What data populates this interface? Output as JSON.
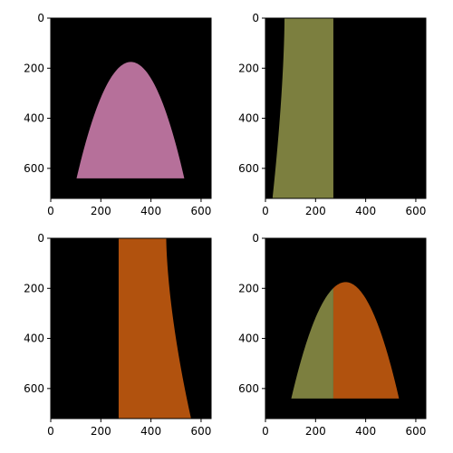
{
  "chart_data": [
    {
      "type": "heatmap",
      "xlim": [
        0,
        640
      ],
      "ylim": [
        720,
        0
      ],
      "x_ticks": [
        0,
        200,
        400,
        600
      ],
      "y_ticks": [
        0,
        200,
        400,
        600
      ],
      "background_color": "#000000",
      "regions": [
        {
          "color": "#b6709a",
          "shape": "parabola",
          "apex": [
            320,
            175
          ],
          "base_y": 640,
          "base_x": [
            103,
            533
          ],
          "clip_x": [
            0,
            640
          ]
        }
      ]
    },
    {
      "type": "heatmap",
      "xlim": [
        0,
        640
      ],
      "ylim": [
        720,
        0
      ],
      "x_ticks": [
        0,
        200,
        400,
        600
      ],
      "y_ticks": [
        0,
        200,
        400,
        600
      ],
      "background_color": "#000000",
      "regions": [
        {
          "color": "#7c7f3f",
          "shape": "left-curved-band",
          "top_x": [
            76,
            271
          ],
          "bottom_x": [
            28,
            271
          ],
          "y_range": [
            0,
            720
          ]
        }
      ]
    },
    {
      "type": "heatmap",
      "xlim": [
        0,
        640
      ],
      "ylim": [
        720,
        0
      ],
      "x_ticks": [
        0,
        200,
        400,
        600
      ],
      "y_ticks": [
        0,
        200,
        400,
        600
      ],
      "background_color": "#000000",
      "regions": [
        {
          "color": "#b1520e",
          "shape": "right-curved-band",
          "top_x": [
            271,
            461
          ],
          "bottom_x": [
            271,
            560
          ],
          "y_range": [
            0,
            720
          ]
        }
      ]
    },
    {
      "type": "heatmap",
      "xlim": [
        0,
        640
      ],
      "ylim": [
        720,
        0
      ],
      "x_ticks": [
        0,
        200,
        400,
        600
      ],
      "y_ticks": [
        0,
        200,
        400,
        600
      ],
      "background_color": "#000000",
      "regions": [
        {
          "color": "#7c7f3f",
          "shape": "parabola",
          "apex": [
            320,
            175
          ],
          "base_y": 640,
          "base_x": [
            103,
            533
          ],
          "clip_x": [
            0,
            271
          ]
        },
        {
          "color": "#b1520e",
          "shape": "parabola",
          "apex": [
            320,
            175
          ],
          "base_y": 640,
          "base_x": [
            103,
            533
          ],
          "clip_x": [
            271,
            640
          ]
        }
      ]
    }
  ]
}
